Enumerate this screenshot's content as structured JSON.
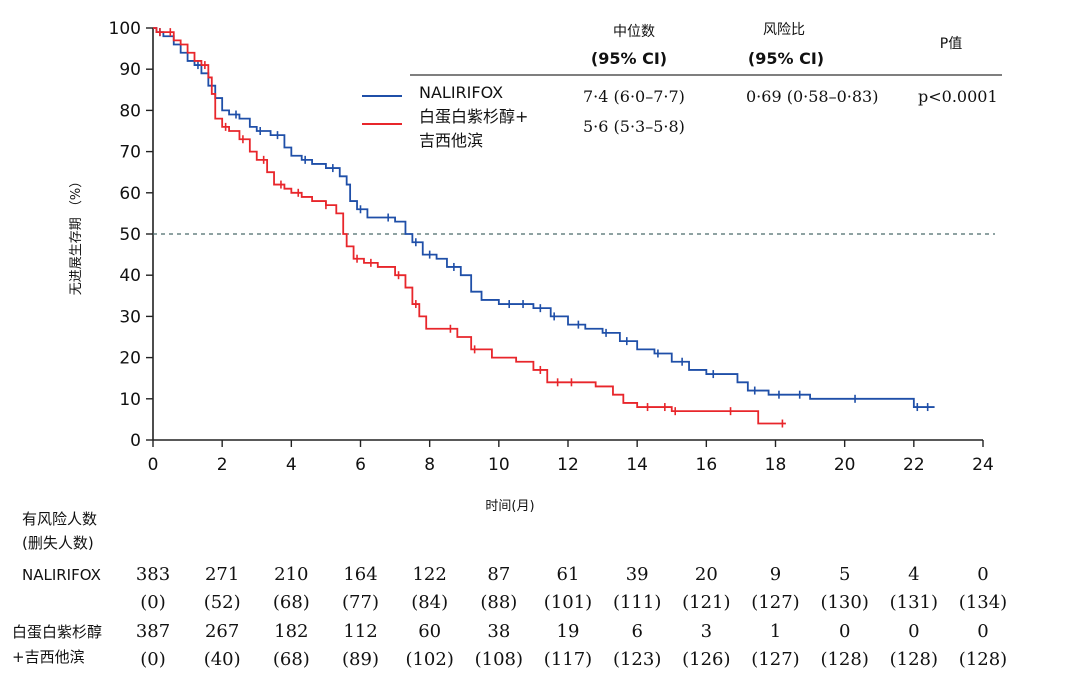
{
  "chart_data": {
    "type": "line",
    "subtype": "kaplan-meier",
    "xlabel": "时间(月)",
    "ylabel": "无进展生存期 （%）",
    "xlim": [
      0,
      24
    ],
    "ylim": [
      0,
      100
    ],
    "x_ticks": [
      0,
      2,
      4,
      6,
      8,
      10,
      12,
      14,
      16,
      18,
      20,
      22,
      24
    ],
    "y_ticks": [
      0,
      10,
      20,
      30,
      40,
      50,
      60,
      70,
      80,
      90,
      100
    ],
    "reference_line": {
      "y": 50,
      "style": "dashed"
    },
    "series": [
      {
        "name": "NALIRIFOX",
        "color": "#1f4fa8",
        "x": [
          0,
          0.1,
          0.3,
          0.6,
          0.8,
          1.0,
          1.2,
          1.4,
          1.6,
          1.8,
          2.0,
          2.2,
          2.5,
          2.8,
          3.0,
          3.4,
          3.8,
          4.0,
          4.3,
          4.6,
          5.0,
          5.4,
          5.6,
          5.7,
          5.9,
          6.2,
          6.5,
          7.0,
          7.3,
          7.5,
          7.8,
          8.2,
          8.5,
          8.9,
          9.2,
          9.5,
          10.0,
          10.5,
          11.0,
          11.5,
          12.0,
          12.5,
          13.0,
          13.5,
          14.0,
          14.5,
          15.0,
          15.5,
          16.0,
          16.5,
          16.9,
          17.2,
          17.8,
          18.5,
          19.0,
          20.0,
          21.0,
          22.0,
          22.6
        ],
        "y": [
          100,
          99,
          98,
          96,
          94,
          92,
          91,
          89,
          86,
          83,
          80,
          79,
          78,
          76,
          75,
          74,
          71,
          69,
          68,
          67,
          66,
          64,
          62,
          58,
          56,
          54,
          54,
          53,
          50,
          48,
          45,
          44,
          42,
          40,
          36,
          34,
          33,
          33,
          32,
          30,
          28,
          27,
          26,
          24,
          22,
          21,
          19,
          17,
          16,
          16,
          14,
          12,
          11,
          11,
          10,
          10,
          10,
          8,
          8
        ],
        "censor_x": [
          0.2,
          1.3,
          2.4,
          3.1,
          3.6,
          4.4,
          5.2,
          6.0,
          6.8,
          7.6,
          8.0,
          8.7,
          10.3,
          10.7,
          11.2,
          11.6,
          12.3,
          13.1,
          13.7,
          14.6,
          15.3,
          16.2,
          17.4,
          18.1,
          18.7,
          20.3,
          22.1,
          22.4
        ]
      },
      {
        "name": "白蛋白紫杉醇+吉西他滨",
        "color": "#e8262b",
        "x": [
          0,
          0.1,
          0.3,
          0.6,
          0.8,
          1.0,
          1.2,
          1.4,
          1.6,
          1.7,
          1.8,
          2.0,
          2.2,
          2.5,
          2.8,
          3.0,
          3.3,
          3.5,
          3.8,
          4.0,
          4.3,
          4.6,
          5.0,
          5.3,
          5.5,
          5.6,
          5.8,
          6.1,
          6.5,
          7.0,
          7.3,
          7.5,
          7.7,
          7.9,
          8.3,
          8.8,
          9.2,
          9.8,
          10.5,
          11.0,
          11.4,
          12.0,
          12.8,
          13.3,
          13.6,
          14.0,
          15.0,
          16.0,
          17.0,
          17.5,
          18.3
        ],
        "y": [
          100,
          99,
          99,
          97,
          96,
          94,
          92,
          91,
          88,
          84,
          78,
          76,
          75,
          73,
          70,
          68,
          65,
          62,
          61,
          60,
          59,
          58,
          57,
          55,
          50,
          47,
          44,
          43,
          42,
          40,
          37,
          33,
          30,
          27,
          27,
          25,
          22,
          20,
          19,
          17,
          14,
          14,
          13,
          11,
          9,
          8,
          7,
          7,
          7,
          4,
          4
        ],
        "censor_x": [
          0.2,
          0.5,
          1.5,
          2.1,
          2.6,
          3.2,
          3.7,
          4.2,
          5.0,
          5.9,
          6.3,
          7.1,
          7.6,
          8.6,
          9.3,
          11.2,
          11.7,
          12.1,
          14.3,
          14.8,
          15.1,
          16.7,
          18.2
        ]
      }
    ],
    "stats_table": {
      "col1_header": "中位数",
      "col1_sub": "(95% CI)",
      "col2_header": "风险比",
      "col2_sub": "(95% CI)",
      "col3_header": "P值",
      "rows": [
        {
          "legend_label": "NALIRIFOX",
          "median": "7·4 (6·0–7·7)",
          "hr": "0·69 (0·58–0·83)",
          "p": "p<0.0001"
        },
        {
          "legend_label_line1": "白蛋白紫杉醇+",
          "legend_label_line2": "吉西他滨",
          "median": "5·6 (5·3–5·8)"
        }
      ]
    },
    "risk_table": {
      "title_line1": "有风险人数",
      "title_line2": "(删失人数)",
      "times": [
        0,
        2,
        4,
        6,
        8,
        10,
        12,
        14,
        16,
        18,
        20,
        22,
        24
      ],
      "rows": [
        {
          "label_line1": "NALIRIFOX",
          "at_risk": [
            "383",
            "271",
            "210",
            "164",
            "122",
            "87",
            "61",
            "39",
            "20",
            "9",
            "5",
            "4",
            "0"
          ],
          "censored": [
            "(0)",
            "(52)",
            "(68)",
            "(77)",
            "(84)",
            "(88)",
            "(101)",
            "(111)",
            "(121)",
            "(127)",
            "(130)",
            "(131)",
            "(134)"
          ]
        },
        {
          "label_line1": "白蛋白紫杉醇",
          "label_line2": "+吉西他滨",
          "at_risk": [
            "387",
            "267",
            "182",
            "112",
            "60",
            "38",
            "19",
            "6",
            "3",
            "1",
            "0",
            "0",
            "0"
          ],
          "censored": [
            "(0)",
            "(40)",
            "(68)",
            "(89)",
            "(102)",
            "(108)",
            "(117)",
            "(123)",
            "(126)",
            "(127)",
            "(128)",
            "(128)",
            "(128)"
          ]
        }
      ]
    }
  }
}
